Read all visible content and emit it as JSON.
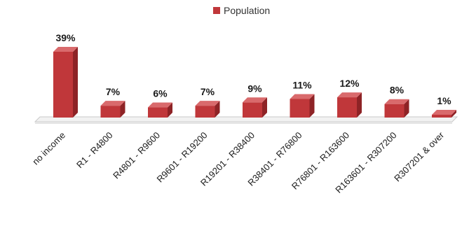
{
  "chart_data": {
    "type": "bar",
    "style": "3d-column",
    "categories": [
      "no income",
      "R1 - R4800",
      "R4801 - R9600",
      "R9601 - R19200",
      "R19201 - R38400",
      "R38401 - R76800",
      "R76801 - R163600",
      "R163601 - R307200",
      "R307201 & over"
    ],
    "series": [
      {
        "name": "Population",
        "values": [
          39,
          7,
          6,
          7,
          9,
          11,
          12,
          8,
          1
        ],
        "labels": [
          "39%",
          "7%",
          "6%",
          "7%",
          "9%",
          "11%",
          "12%",
          "8%",
          "1%"
        ]
      }
    ],
    "unit": "%",
    "ylim": [
      0,
      40
    ],
    "grid": false,
    "legend_position": "top-center"
  },
  "colors": {
    "bar_front": "#c0373a",
    "bar_top": "#d96a6c",
    "bar_side": "#8e2326",
    "legend_swatch": "#c0373a",
    "floor": "#c8c8c8"
  }
}
